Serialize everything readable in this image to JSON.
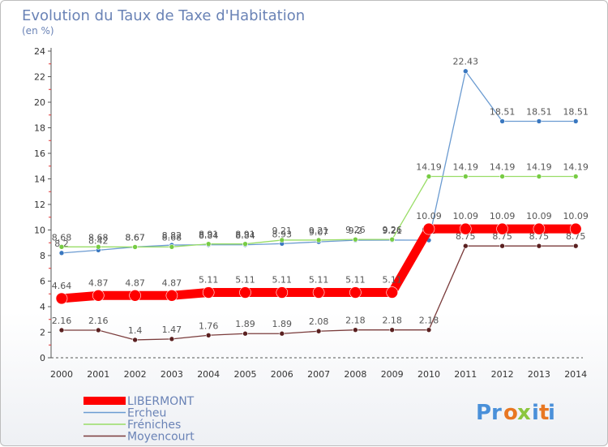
{
  "chart_data": {
    "type": "line",
    "title": "Evolution du Taux de Taxe d'Habitation",
    "subtitle": "(en %)",
    "xlabel": "",
    "ylabel": "",
    "ylim": [
      0,
      24
    ],
    "yticks": [
      0,
      2,
      4,
      6,
      8,
      10,
      12,
      14,
      16,
      18,
      20,
      22,
      24
    ],
    "x": [
      "2000",
      "2001",
      "2002",
      "2003",
      "2004",
      "2005",
      "2006",
      "2007",
      "2008",
      "2009",
      "2010",
      "2011",
      "2012",
      "2013",
      "2014"
    ],
    "grid": false,
    "legend_position": "bottom-left",
    "series": [
      {
        "name": "Ercheu",
        "color": "#6b9bd1",
        "point_color": "#3a78c0",
        "values": [
          8.2,
          8.42,
          8.67,
          8.82,
          8.84,
          8.84,
          8.93,
          9.07,
          9.2,
          9.21,
          9.2,
          22.43,
          18.51,
          18.51,
          18.51
        ],
        "labels": [
          "8.2",
          "8.42",
          "8.67",
          "8.82",
          "8.84",
          "8.84",
          "8.93",
          "9.07",
          "9.2",
          "9.21",
          "9.2",
          "22.43",
          "18.51",
          "18.51",
          "18.51"
        ]
      },
      {
        "name": "Fréniches",
        "color": "#99dd66",
        "point_color": "#77cc44",
        "values": [
          8.68,
          8.68,
          8.67,
          8.68,
          8.91,
          8.91,
          9.21,
          9.21,
          9.26,
          9.26,
          14.19,
          14.19,
          14.19,
          14.19,
          14.19
        ],
        "labels": [
          "8.68",
          "8.68",
          "8.67",
          "8.68",
          "8.91",
          "8.91",
          "9.21",
          "9.21",
          "9.26",
          "9.26",
          "14.19",
          "14.19",
          "14.19",
          "14.19",
          "14.19"
        ]
      },
      {
        "name": "Moyencourt",
        "color": "#7a3b3b",
        "point_color": "#5a2020",
        "values": [
          2.16,
          2.16,
          1.4,
          1.47,
          1.76,
          1.89,
          1.89,
          2.08,
          2.18,
          2.18,
          2.18,
          8.75,
          8.75,
          8.75,
          8.75
        ],
        "labels": [
          "2.16",
          "2.16",
          "1.4",
          "1.47",
          "1.76",
          "1.89",
          "1.89",
          "2.08",
          "2.18",
          "2.18",
          "2.18",
          "8.75",
          "8.75",
          "8.75",
          "8.75"
        ]
      },
      {
        "name": "LIBERMONT",
        "color": "#ff0000",
        "point_color": "#ff0000",
        "values": [
          4.64,
          4.87,
          4.87,
          4.87,
          5.11,
          5.11,
          5.11,
          5.11,
          5.11,
          5.11,
          10.09,
          10.09,
          10.09,
          10.09,
          10.09
        ],
        "labels": [
          "4.64",
          "4.87",
          "4.87",
          "4.87",
          "5.11",
          "5.11",
          "5.11",
          "5.11",
          "5.11",
          "5.11",
          "10.09",
          "10.09",
          "10.09",
          "10.09",
          "10.09"
        ]
      }
    ],
    "legend_order": [
      "LIBERMONT",
      "Ercheu",
      "Fréniches",
      "Moyencourt"
    ]
  },
  "logo": {
    "text": "Proxiti",
    "letter_colors": [
      "#4a90d9",
      "#4a90d9",
      "#e87722",
      "#8cc63f",
      "#4a90d9",
      "#e87722",
      "#4a90d9"
    ]
  }
}
